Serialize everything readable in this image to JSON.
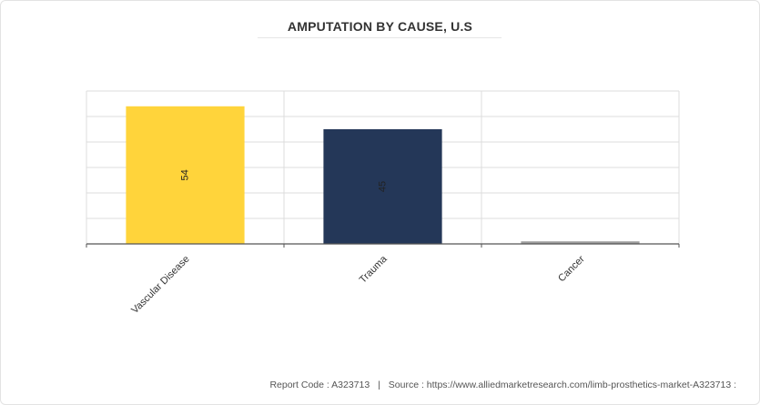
{
  "chart_data": {
    "type": "bar",
    "title": "AMPUTATION BY CAUSE, U.S",
    "categories": [
      "Vascular Disease",
      "Trauma",
      "Cancer"
    ],
    "values": [
      54,
      45,
      1
    ],
    "data_labels": [
      "54",
      "45",
      ""
    ],
    "colors": [
      "#FFD43B",
      "#243758",
      "#9E9E9E"
    ],
    "ylim": [
      0,
      60
    ],
    "y_gridlines": 6,
    "grid": true,
    "legend": false,
    "xlabel": "",
    "ylabel": ""
  },
  "footer": {
    "report_code": "Report Code : A323713",
    "separator": "|",
    "source": "Source : https://www.alliedmarketresearch.com/limb-prosthetics-market-A323713 :"
  }
}
